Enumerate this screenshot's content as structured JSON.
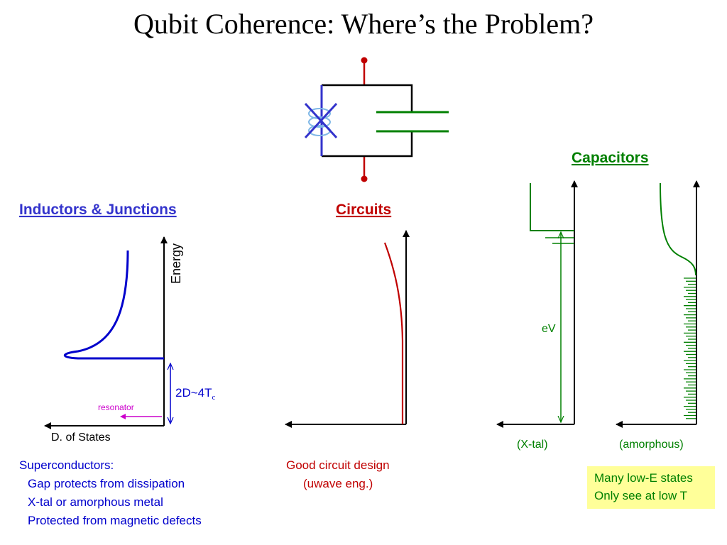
{
  "title": "Qubit Coherence: Where’s the Problem?",
  "sections": {
    "inductors": "Inductors & Junctions",
    "circuits": "Circuits",
    "capacitors": "Capacitors"
  },
  "labels": {
    "energy": "Energy",
    "dos": "D. of States",
    "gap_main": "2D~4T",
    "gap_sub": "c",
    "resonator": "resonator",
    "ev": "eV",
    "xtal": "(X-tal)",
    "amorphous": "(amorphous)"
  },
  "notes": {
    "superconductors": [
      "Superconductors:",
      "Gap protects from dissipation",
      "X-tal or amorphous metal",
      "Protected from magnetic defects"
    ],
    "circuits": [
      "Good circuit design",
      "(uwave eng.)"
    ],
    "capacitors_box": [
      "Many low-E states",
      "Only see at low T"
    ]
  },
  "colors": {
    "inductor": "#0000cc",
    "circuit": "#c00000",
    "capacitor": "#008000",
    "resonator": "#cc00cc",
    "box": "#ffff99"
  }
}
